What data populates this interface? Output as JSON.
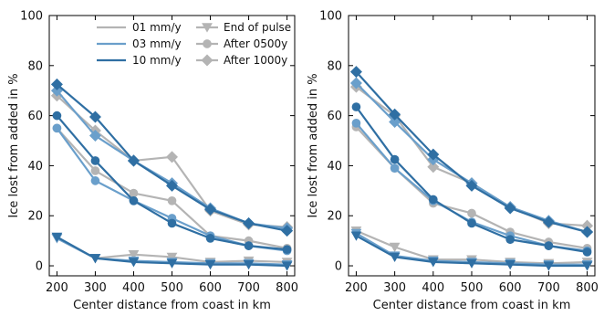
{
  "chart_data": [
    {
      "type": "line",
      "panel": "left",
      "xlabel": "Center distance from coast in km",
      "ylabel": "Ice lost from added in %",
      "x": [
        200,
        300,
        400,
        500,
        600,
        700,
        800
      ],
      "xticks": [
        "200",
        "300",
        "400",
        "500",
        "600",
        "700",
        "800"
      ],
      "yticks": [
        "0",
        "20",
        "40",
        "60",
        "80",
        "100"
      ],
      "xlim": [
        180,
        820
      ],
      "ylim": [
        -4,
        100
      ],
      "grid": false,
      "legend_position": "top-right",
      "legend": {
        "rates": [
          {
            "label": "01 mm/y",
            "color": "#b4b4b4"
          },
          {
            "label": "03 mm/y",
            "color": "#6a9fcb"
          },
          {
            "label": "10 mm/y",
            "color": "#2f6fa3"
          }
        ],
        "markers": [
          {
            "label": "End of pulse",
            "marker": "triangle-down"
          },
          {
            "label": "After 0500y",
            "marker": "circle"
          },
          {
            "label": "After 1000y",
            "marker": "diamond"
          }
        ]
      },
      "series": [
        {
          "rate": "01 mm/y",
          "stage": "End of pulse",
          "color": "#b4b4b4",
          "marker": "triangle-down",
          "values": [
            11,
            3,
            4.5,
            3.5,
            1.5,
            2,
            1.5
          ]
        },
        {
          "rate": "03 mm/y",
          "stage": "End of pulse",
          "color": "#6a9fcb",
          "marker": "triangle-down",
          "values": [
            11,
            3,
            2,
            1.5,
            1,
            1,
            0.5
          ]
        },
        {
          "rate": "10 mm/y",
          "stage": "End of pulse",
          "color": "#2f6fa3",
          "marker": "triangle-down",
          "values": [
            11.5,
            3,
            1.5,
            1,
            0.5,
            0.5,
            0
          ]
        },
        {
          "rate": "01 mm/y",
          "stage": "After 0500y",
          "color": "#b4b4b4",
          "marker": "circle",
          "values": [
            55,
            38,
            29,
            26,
            12,
            10,
            7
          ]
        },
        {
          "rate": "03 mm/y",
          "stage": "After 0500y",
          "color": "#6a9fcb",
          "marker": "circle",
          "values": [
            55,
            34,
            26,
            19,
            12,
            8,
            6
          ]
        },
        {
          "rate": "10 mm/y",
          "stage": "After 0500y",
          "color": "#2f6fa3",
          "marker": "circle",
          "values": [
            60,
            42,
            26,
            17,
            11,
            8,
            6.5
          ]
        },
        {
          "rate": "01 mm/y",
          "stage": "After 1000y",
          "color": "#b4b4b4",
          "marker": "diamond",
          "values": [
            68,
            54,
            42,
            43.5,
            22,
            16.5,
            15.5
          ]
        },
        {
          "rate": "03 mm/y",
          "stage": "After 1000y",
          "color": "#6a9fcb",
          "marker": "diamond",
          "values": [
            70,
            52,
            42,
            33,
            23,
            17,
            15
          ]
        },
        {
          "rate": "10 mm/y",
          "stage": "After 1000y",
          "color": "#2f6fa3",
          "marker": "diamond",
          "values": [
            72.5,
            59.5,
            42,
            32,
            22.5,
            17,
            14
          ]
        }
      ]
    },
    {
      "type": "line",
      "panel": "right",
      "xlabel": "Center distance from coast in km",
      "ylabel": "Ice lost from added in %",
      "x": [
        200,
        300,
        400,
        500,
        600,
        700,
        800
      ],
      "xticks": [
        "200",
        "300",
        "400",
        "500",
        "600",
        "700",
        "800"
      ],
      "yticks": [
        "0",
        "20",
        "40",
        "60",
        "80",
        "100"
      ],
      "xlim": [
        180,
        820
      ],
      "ylim": [
        -4,
        100
      ],
      "grid": false,
      "series": [
        {
          "rate": "01 mm/y",
          "stage": "End of pulse",
          "color": "#b4b4b4",
          "marker": "triangle-down",
          "values": [
            14,
            7.5,
            2.5,
            2.5,
            1.5,
            1,
            1.5
          ]
        },
        {
          "rate": "03 mm/y",
          "stage": "End of pulse",
          "color": "#6a9fcb",
          "marker": "triangle-down",
          "values": [
            13,
            4,
            2,
            1.5,
            1,
            0.5,
            0.5
          ]
        },
        {
          "rate": "10 mm/y",
          "stage": "End of pulse",
          "color": "#2f6fa3",
          "marker": "triangle-down",
          "values": [
            12,
            3.5,
            1.5,
            1,
            0.5,
            0,
            0
          ]
        },
        {
          "rate": "01 mm/y",
          "stage": "After 0500y",
          "color": "#b4b4b4",
          "marker": "circle",
          "values": [
            55.5,
            39,
            25,
            21,
            13.5,
            9.5,
            7
          ]
        },
        {
          "rate": "03 mm/y",
          "stage": "After 0500y",
          "color": "#6a9fcb",
          "marker": "circle",
          "values": [
            57,
            39,
            26,
            17.5,
            12,
            8,
            6
          ]
        },
        {
          "rate": "10 mm/y",
          "stage": "After 0500y",
          "color": "#2f6fa3",
          "marker": "circle",
          "values": [
            63.5,
            42.5,
            26.5,
            17,
            10.5,
            8,
            5.5
          ]
        },
        {
          "rate": "01 mm/y",
          "stage": "After 1000y",
          "color": "#b4b4b4",
          "marker": "diamond",
          "values": [
            71.5,
            60,
            39.5,
            33,
            23.5,
            17,
            16
          ]
        },
        {
          "rate": "03 mm/y",
          "stage": "After 1000y",
          "color": "#6a9fcb",
          "marker": "diamond",
          "values": [
            73,
            57.5,
            42.5,
            33,
            23.5,
            18,
            13.5
          ]
        },
        {
          "rate": "10 mm/y",
          "stage": "After 1000y",
          "color": "#2f6fa3",
          "marker": "diamond",
          "values": [
            77.5,
            60.5,
            44.5,
            32,
            23,
            17.5,
            13.5
          ]
        }
      ]
    }
  ]
}
